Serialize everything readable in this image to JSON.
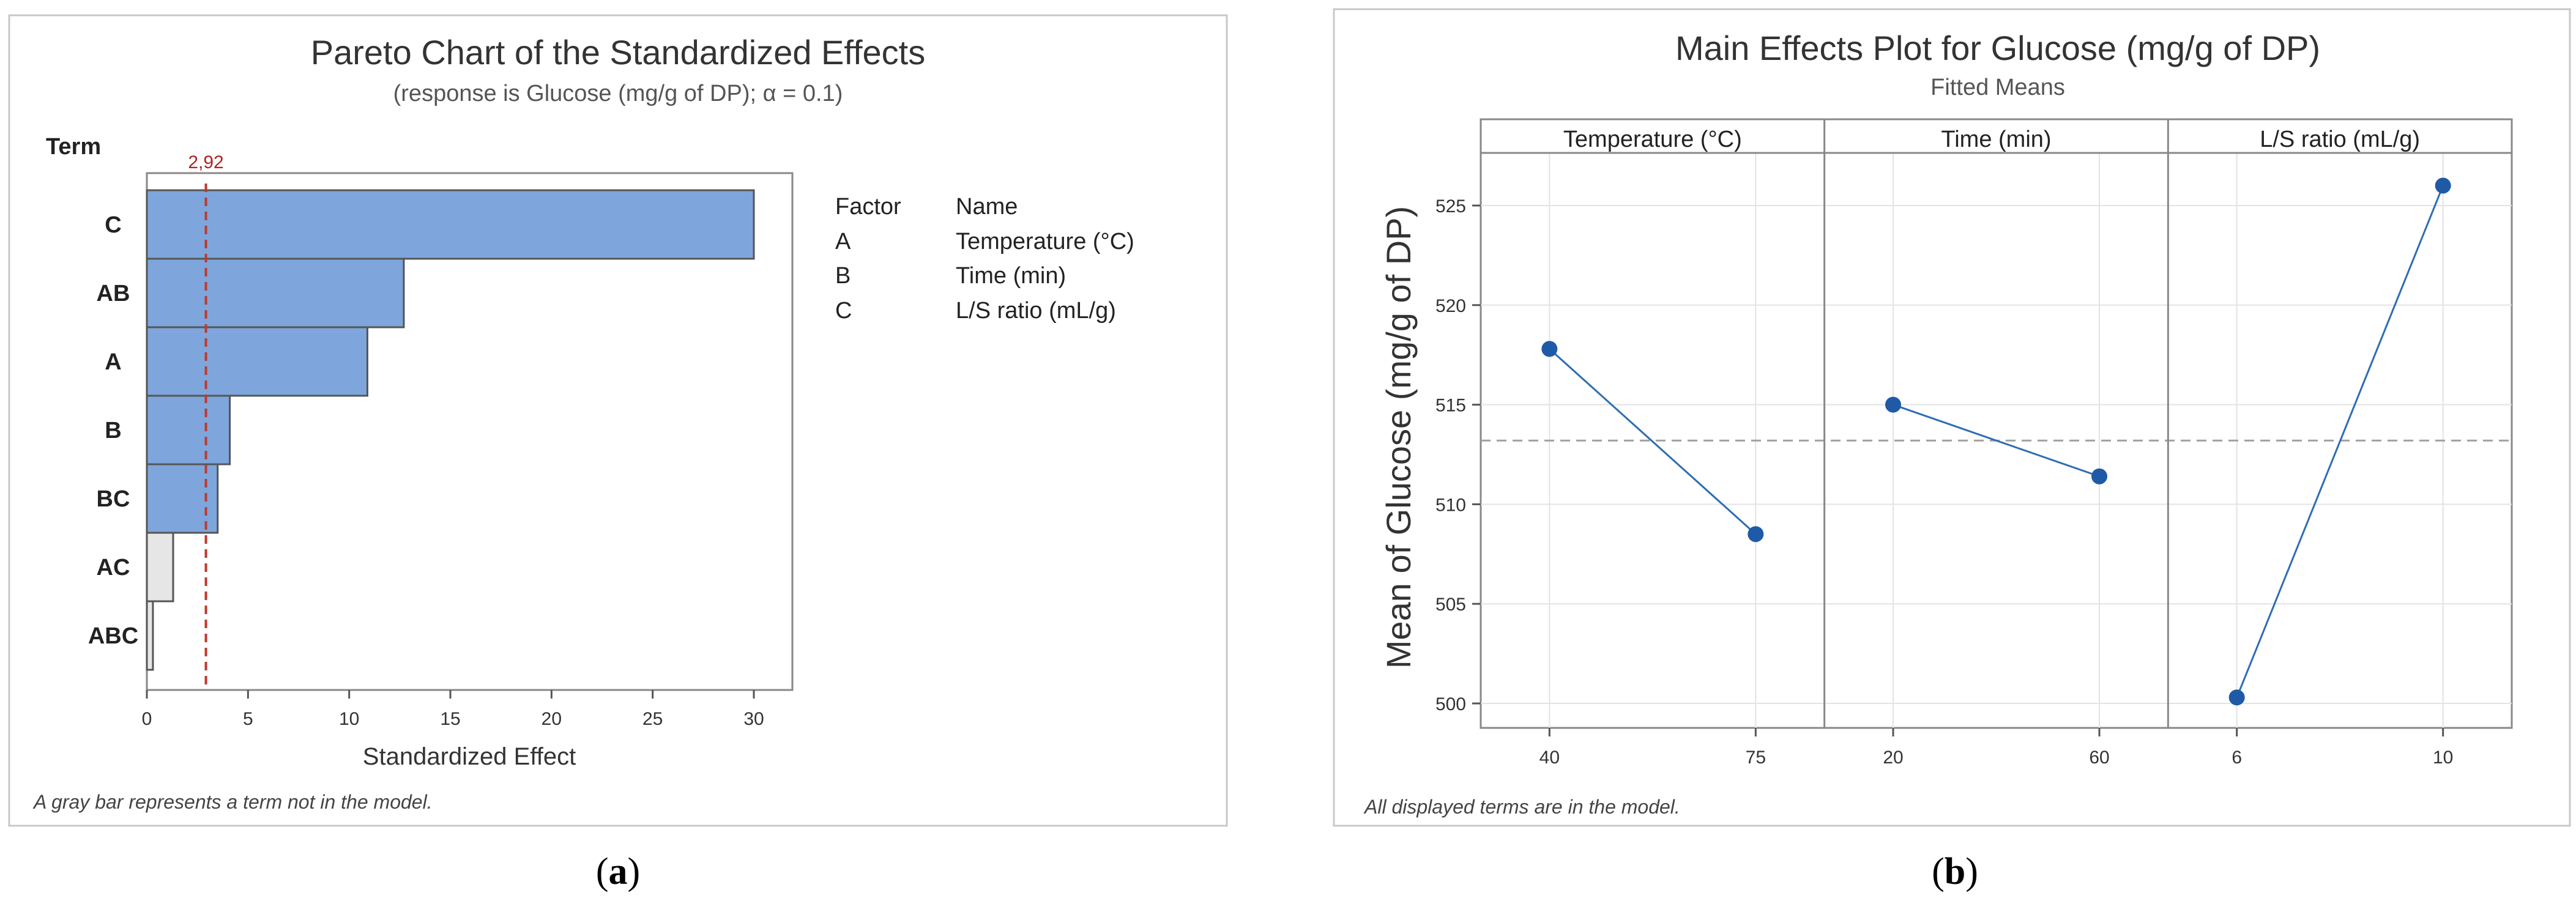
{
  "chart_data": [
    {
      "type": "bar",
      "orientation": "horizontal",
      "title": "Pareto Chart of the Standardized Effects",
      "subtitle": "(response is Glucose (mg/g of DP); α = 0.1)",
      "xlabel": "Standardized Effect",
      "ylabel": "Term",
      "categories": [
        "C",
        "AB",
        "A",
        "B",
        "BC",
        "AC",
        "ABC"
      ],
      "values": [
        30.0,
        12.7,
        10.9,
        4.1,
        3.5,
        1.3,
        0.3
      ],
      "in_model": [
        true,
        true,
        true,
        true,
        true,
        false,
        false
      ],
      "xlim": [
        0,
        32
      ],
      "xticks": [
        "0",
        "5",
        "10",
        "15",
        "20",
        "25",
        "30"
      ],
      "critical_value": 2.92,
      "critical_label": "2,92",
      "colors": {
        "in_model": "#7ea6dc",
        "not_in_model": "#e6e6e6",
        "edge": "#555555",
        "critical": "#c0392b"
      },
      "legend": {
        "headers": [
          "Factor",
          "Name"
        ],
        "rows": [
          {
            "factor": "A",
            "name": "Temperature (°C)"
          },
          {
            "factor": "B",
            "name": "Time (min)"
          },
          {
            "factor": "C",
            "name": "L/S ratio (mL/g)"
          }
        ]
      },
      "footnote": "A gray bar represents a term not in the model.",
      "panel_label": "a"
    },
    {
      "type": "line",
      "title": "Main Effects Plot for Glucose (mg/g of DP)",
      "subtitle": "Fitted Means",
      "ylabel": "Mean of Glucose (mg/g of DP)",
      "ylim": [
        499,
        527.5
      ],
      "yticks": [
        "500",
        "505",
        "510",
        "515",
        "520",
        "525"
      ],
      "overall_mean": 513.2,
      "panels": [
        {
          "name": "Temperature (°C)",
          "x": [
            "40",
            "75"
          ],
          "y": [
            517.8,
            508.5
          ]
        },
        {
          "name": "Time (min)",
          "x": [
            "20",
            "60"
          ],
          "y": [
            515.0,
            511.4
          ]
        },
        {
          "name": "L/S ratio (mL/g)",
          "x": [
            "6",
            "10"
          ],
          "y": [
            500.3,
            526.0
          ]
        }
      ],
      "colors": {
        "line": "#2e6db4",
        "point": "#1f5aa6",
        "mean": "#a0a0a0"
      },
      "footnote": "All displayed terms are in the model.",
      "panel_label": "b"
    }
  ]
}
